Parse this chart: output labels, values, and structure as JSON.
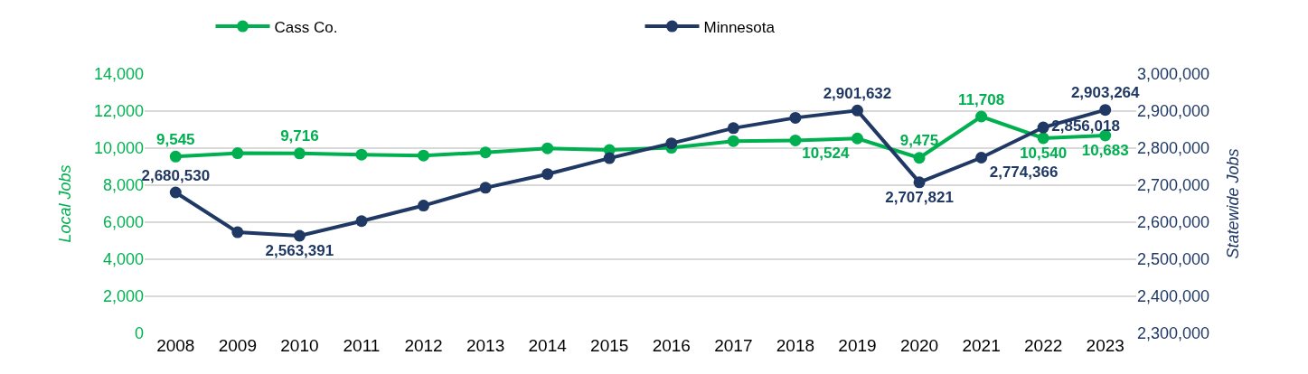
{
  "chart_data": {
    "type": "line",
    "categories": [
      "2008",
      "2009",
      "2010",
      "2011",
      "2012",
      "2013",
      "2014",
      "2015",
      "2016",
      "2017",
      "2018",
      "2019",
      "2020",
      "2021",
      "2022",
      "2023"
    ],
    "series": [
      {
        "name": "Cass Co.",
        "color": "#00b050",
        "values": [
          9545,
          9730,
          9716,
          9650,
          9600,
          9770,
          9990,
          9900,
          10020,
          10380,
          10420,
          10524,
          9475,
          11708,
          10540,
          10683
        ],
        "value_labels": [
          "9,545",
          null,
          "9,716",
          null,
          null,
          null,
          null,
          null,
          null,
          null,
          null,
          "10,524",
          "9,475",
          "11,708",
          "10,540",
          "10,683"
        ]
      },
      {
        "name": "Minnesota",
        "color": "#203864",
        "axis": "y2",
        "values": [
          2680530,
          2573000,
          2563391,
          2603000,
          2645000,
          2693000,
          2730000,
          2773000,
          2813000,
          2854000,
          2882000,
          2901632,
          2707821,
          2774366,
          2856018,
          2903264
        ],
        "value_labels": [
          "2,680,530",
          null,
          "2,563,391",
          null,
          null,
          null,
          null,
          null,
          null,
          null,
          null,
          "2,901,632",
          "2,707,821",
          "2,774,366",
          "2,856,018",
          "2,903,264"
        ]
      }
    ],
    "ylabel": "Local Jobs",
    "y2label": "Statewide Jobs",
    "ylim": [
      0,
      14000
    ],
    "yticks": [
      {
        "value": 0,
        "label": "0"
      },
      {
        "value": 2000,
        "label": "2,000"
      },
      {
        "value": 4000,
        "label": "4,000"
      },
      {
        "value": 6000,
        "label": "6,000"
      },
      {
        "value": 8000,
        "label": "8,000"
      },
      {
        "value": 10000,
        "label": "10,000"
      },
      {
        "value": 12000,
        "label": "12,000"
      },
      {
        "value": 14000,
        "label": "14,000"
      }
    ],
    "y2lim": [
      2300000,
      3000000
    ],
    "y2ticks": [
      {
        "value": 2300000,
        "label": "2,300,000"
      },
      {
        "value": 2400000,
        "label": "2,400,000"
      },
      {
        "value": 2500000,
        "label": "2,500,000"
      },
      {
        "value": 2600000,
        "label": "2,600,000"
      },
      {
        "value": 2700000,
        "label": "2,700,000"
      },
      {
        "value": 2800000,
        "label": "2,800,000"
      },
      {
        "value": 2900000,
        "label": "2,900,000"
      },
      {
        "value": 3000000,
        "label": "3,000,000"
      }
    ],
    "grid": "y",
    "legend": "top",
    "marker": "circle",
    "line_style": "solid"
  }
}
